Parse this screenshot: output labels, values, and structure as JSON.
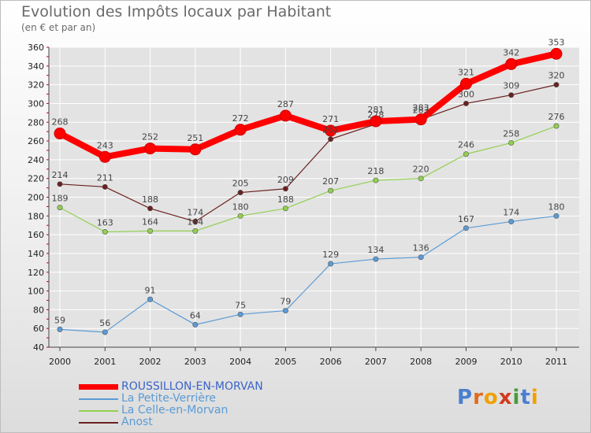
{
  "title": "Evolution des Impôts locaux par Habitant",
  "subtitle": "(en € et par an)",
  "logo_text": "Proxiti",
  "colors": {
    "axis": "#444444",
    "grid": "#ffffff",
    "tick_text": "#222222",
    "label_text": "#444444"
  },
  "chart_data": {
    "type": "line",
    "x": [
      "2000",
      "2001",
      "2002",
      "2003",
      "2004",
      "2005",
      "2006",
      "2007",
      "2008",
      "2009",
      "2010",
      "2011"
    ],
    "ylim": [
      40,
      360
    ],
    "yticks": [
      40,
      60,
      80,
      100,
      120,
      140,
      160,
      180,
      200,
      220,
      240,
      260,
      280,
      300,
      320,
      340,
      360
    ],
    "grid": true,
    "legend_position": "bottom-left",
    "series": [
      {
        "name": "ROUSSILLON-EN-MORVAN",
        "color": "#ff0000",
        "values": [
          268,
          243,
          252,
          251,
          272,
          287,
          271,
          281,
          283,
          321,
          342,
          353
        ],
        "emphasis": true
      },
      {
        "name": "La Petite-Verrière",
        "color": "#5b9bd5",
        "values": [
          59,
          56,
          91,
          64,
          75,
          79,
          129,
          134,
          136,
          167,
          174,
          180
        ]
      },
      {
        "name": "La Celle-en-Morvan",
        "color": "#92d050",
        "values": [
          189,
          163,
          164,
          164,
          180,
          188,
          207,
          218,
          220,
          246,
          258,
          276
        ]
      },
      {
        "name": "Anost",
        "color": "#6b2020",
        "values": [
          214,
          211,
          188,
          174,
          205,
          209,
          262,
          278,
          283,
          300,
          309,
          320
        ]
      }
    ]
  }
}
